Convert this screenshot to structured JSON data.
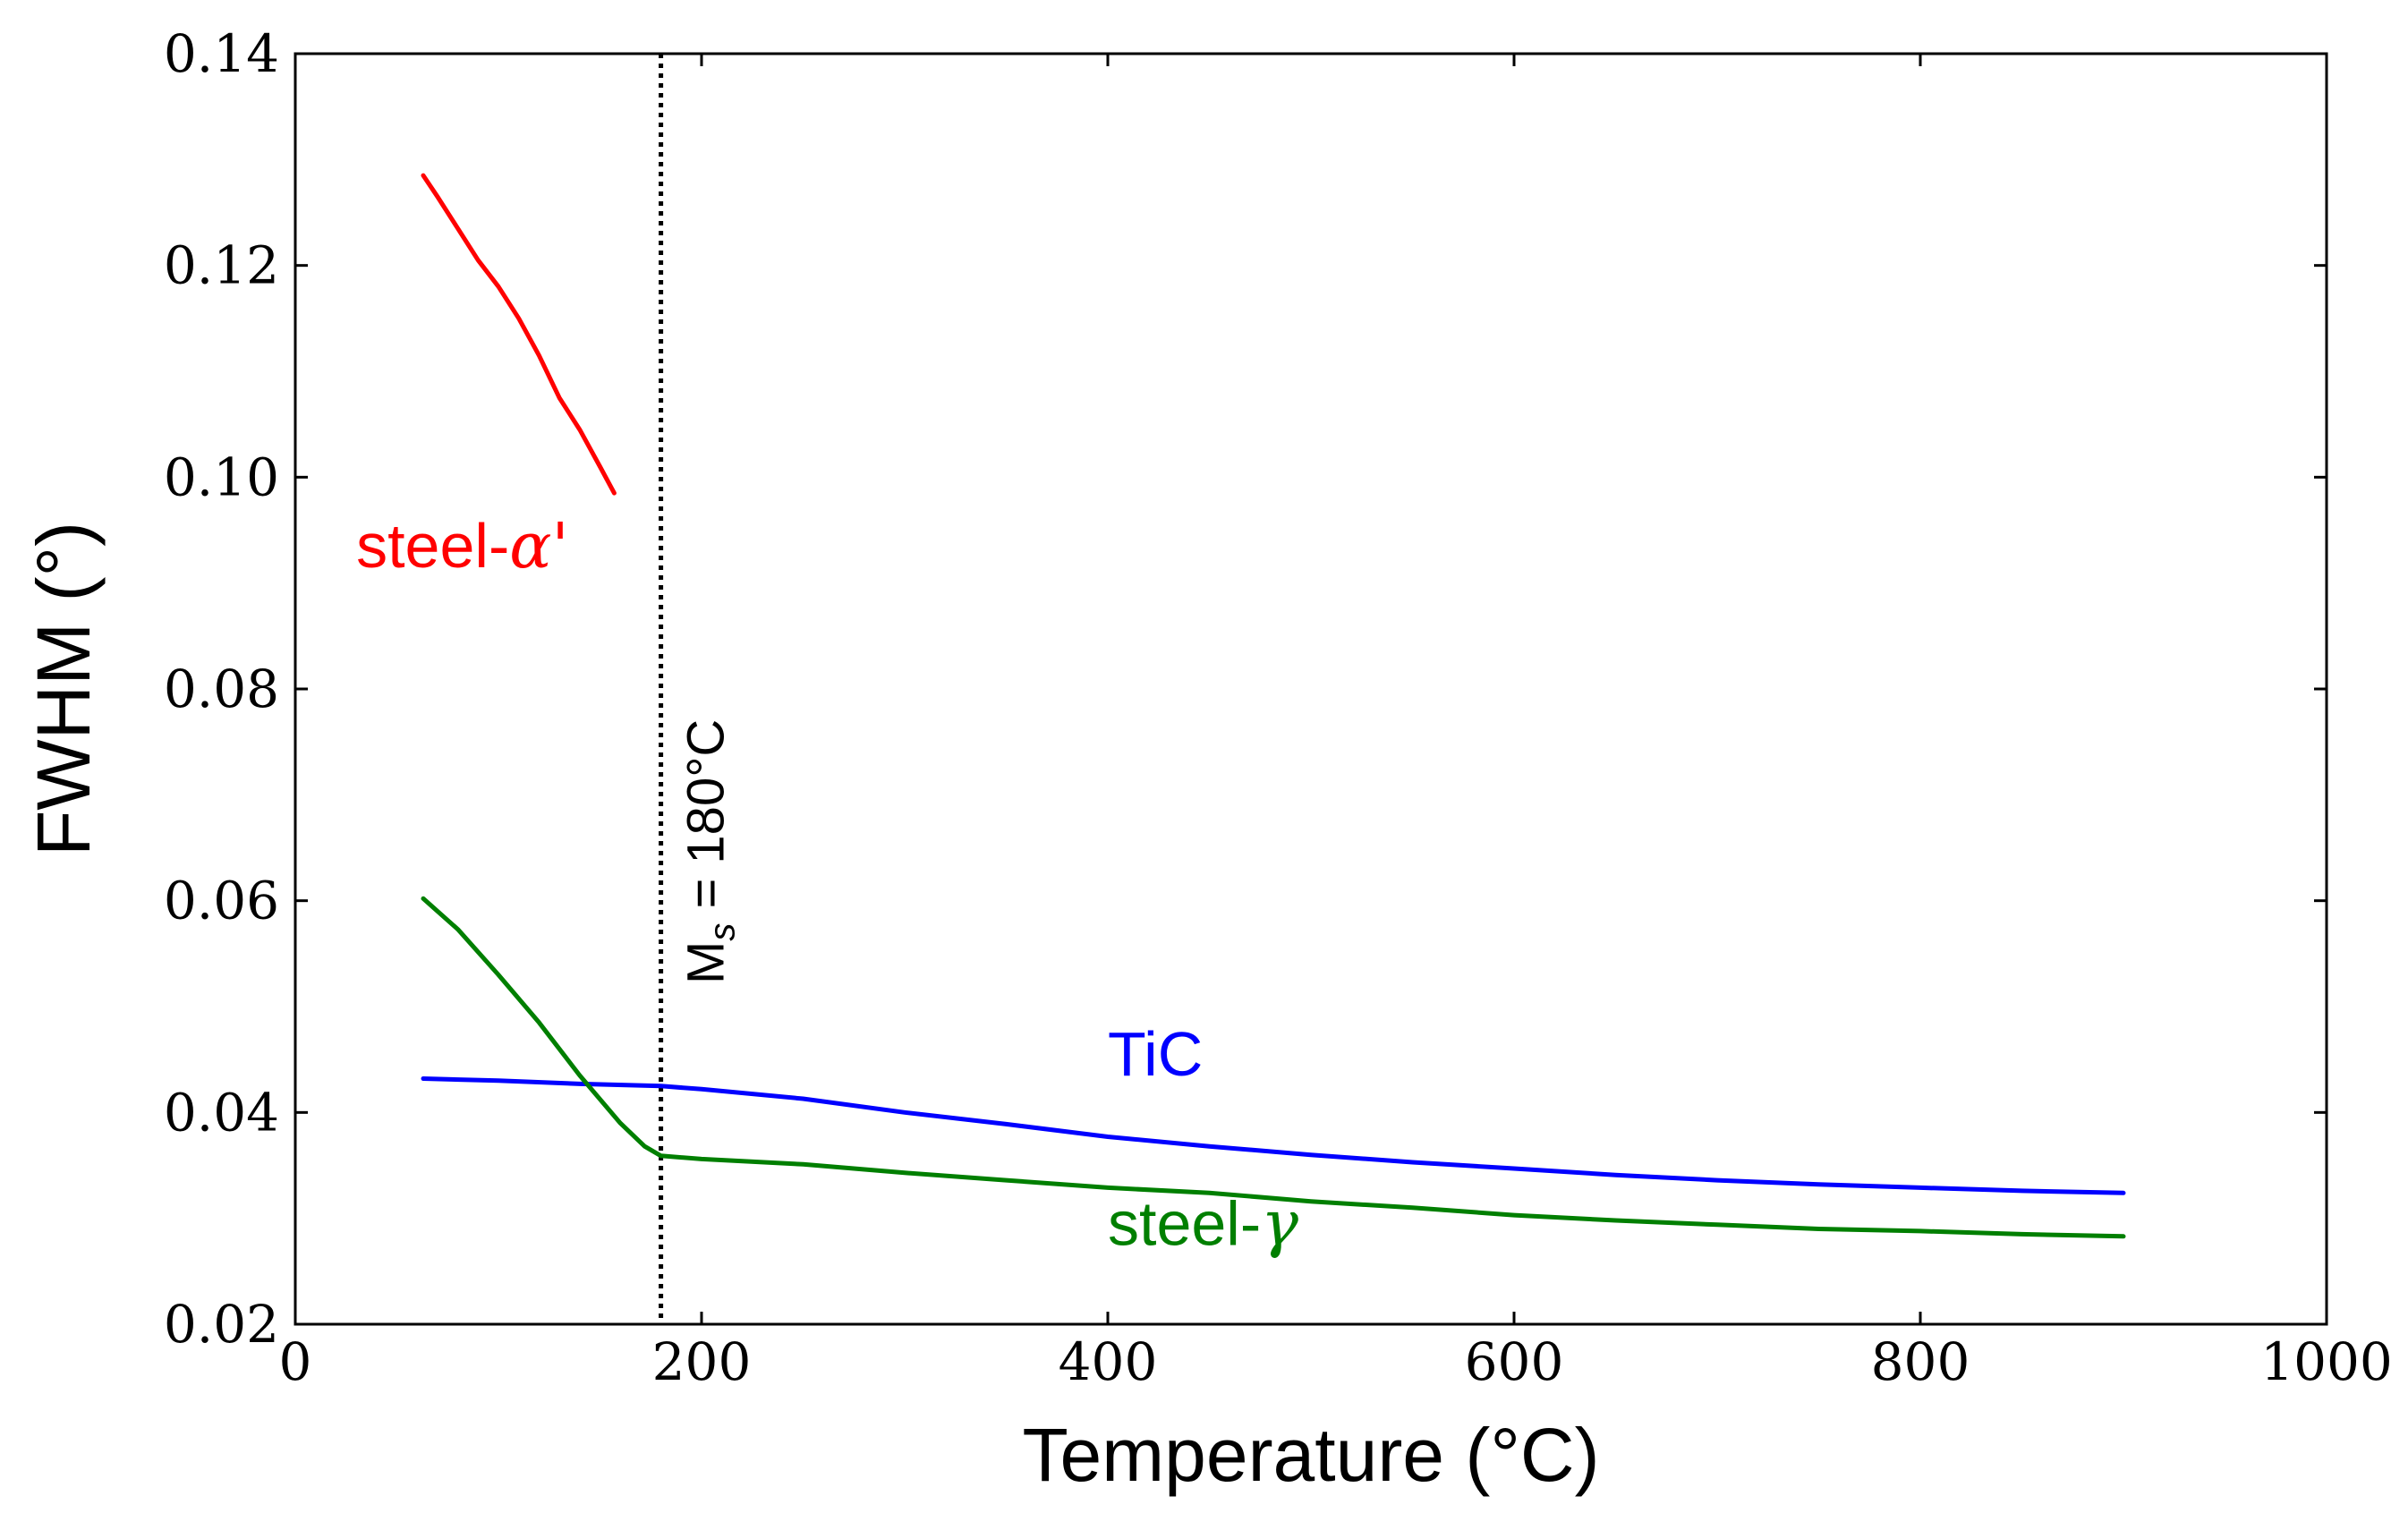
{
  "chart_data": {
    "type": "line",
    "xlabel": "Temperature (°C)",
    "ylabel": "FWHM (°)",
    "xlim": [
      0,
      1000
    ],
    "ylim": [
      0.02,
      0.14
    ],
    "xticks": [
      0,
      200,
      400,
      600,
      800,
      1000
    ],
    "xtick_labels": [
      "0",
      "200",
      "400",
      "600",
      "800",
      "1000"
    ],
    "yticks": [
      0.02,
      0.04,
      0.06,
      0.08,
      0.1,
      0.12,
      0.14
    ],
    "ytick_labels": [
      "0.02",
      "0.04",
      "0.06",
      "0.08",
      "0.10",
      "0.12",
      "0.14"
    ],
    "grid": false,
    "vline": {
      "x": 180,
      "style": "dotted",
      "label_main": "M",
      "label_sub": "s",
      "label_rest": " = 180°C"
    },
    "series": [
      {
        "name": "steel-α'",
        "label_prefix": "steel-",
        "label_symbol": "α'",
        "color": "#ff0000",
        "label_pos": [
          30,
          0.0915
        ],
        "x": [
          63,
          70,
          80,
          90,
          100,
          110,
          120,
          130,
          140,
          150,
          157
        ],
        "y": [
          0.1285,
          0.1265,
          0.1235,
          0.1205,
          0.118,
          0.115,
          0.1115,
          0.1075,
          0.1045,
          0.101,
          0.0985
        ]
      },
      {
        "name": "TiC",
        "label_prefix": "TiC",
        "label_symbol": "",
        "color": "#0000ff",
        "label_pos": [
          400,
          0.0435
        ],
        "x": [
          63,
          100,
          140,
          180,
          200,
          250,
          300,
          350,
          400,
          450,
          500,
          550,
          600,
          650,
          700,
          750,
          800,
          850,
          900
        ],
        "y": [
          0.0432,
          0.043,
          0.0427,
          0.0425,
          0.0422,
          0.0413,
          0.04,
          0.0389,
          0.0377,
          0.0368,
          0.036,
          0.0353,
          0.0347,
          0.0341,
          0.0336,
          0.0332,
          0.0329,
          0.0326,
          0.0324
        ]
      },
      {
        "name": "steel-γ",
        "label_prefix": "steel-",
        "label_symbol": "γ",
        "color": "#007f00",
        "label_pos": [
          400,
          0.0275
        ],
        "x": [
          63,
          80,
          100,
          120,
          140,
          160,
          172,
          180,
          200,
          250,
          300,
          350,
          400,
          450,
          500,
          550,
          600,
          650,
          700,
          750,
          800,
          850,
          900
        ],
        "y": [
          0.0602,
          0.0573,
          0.053,
          0.0485,
          0.0435,
          0.039,
          0.0368,
          0.0359,
          0.0356,
          0.0351,
          0.0343,
          0.0336,
          0.0329,
          0.0324,
          0.0316,
          0.031,
          0.0303,
          0.0298,
          0.0294,
          0.029,
          0.0288,
          0.0285,
          0.0283
        ]
      }
    ]
  }
}
